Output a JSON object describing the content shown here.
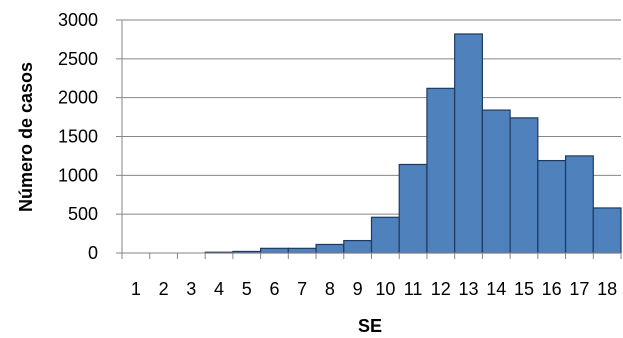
{
  "chart_data": {
    "type": "bar",
    "categories": [
      "1",
      "2",
      "3",
      "4",
      "5",
      "6",
      "7",
      "8",
      "9",
      "10",
      "11",
      "12",
      "13",
      "14",
      "15",
      "16",
      "17",
      "18"
    ],
    "values": [
      0,
      0,
      0,
      10,
      20,
      60,
      60,
      110,
      160,
      460,
      1140,
      2120,
      2820,
      1840,
      1740,
      1190,
      1250,
      580
    ],
    "title": "",
    "xlabel": "SE",
    "ylabel": "Número de casos",
    "ylim": [
      0,
      3000
    ],
    "yticks": [
      0,
      500,
      1000,
      1500,
      2000,
      2500,
      3000
    ],
    "grid": true,
    "legend": "none",
    "bar_color": "#4f81bd"
  }
}
